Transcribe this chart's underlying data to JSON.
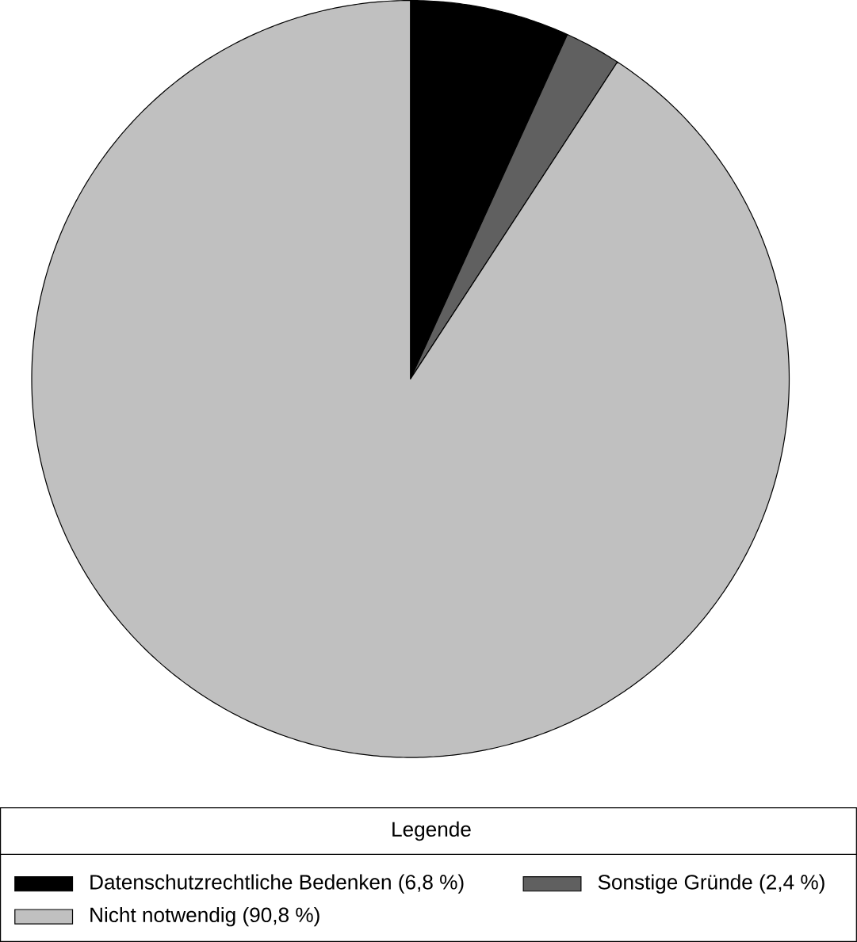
{
  "chart_data": {
    "type": "pie",
    "categories": [
      "Datenschutzrechtliche Bedenken (6,8 %)",
      "Sonstige Gründe (2,4 %)",
      "Nicht notwendig (90,8 %)"
    ],
    "values": [
      6.8,
      2.4,
      90.8
    ],
    "colors": [
      "#000000",
      "#606060",
      "#c0c0c0"
    ],
    "legend": "bottom",
    "legend_title": "Legende"
  }
}
